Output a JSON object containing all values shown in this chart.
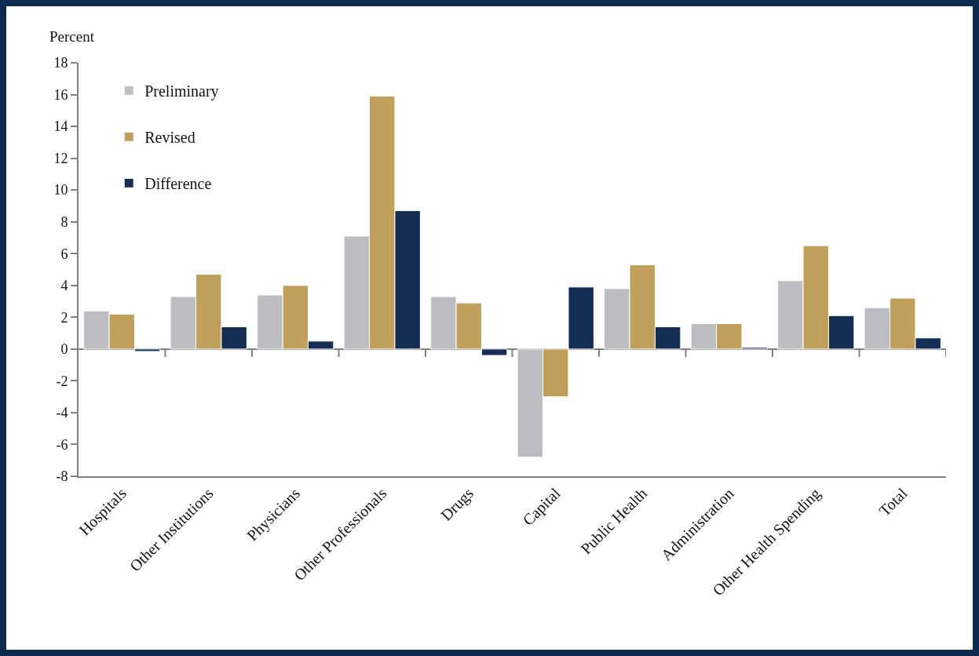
{
  "chart_data": {
    "type": "bar",
    "ylabel": "Percent",
    "categories": [
      "Hospitals",
      "Other Institutions",
      "Physicians",
      "Other Professionals",
      "Drugs",
      "Capital",
      "Public Health",
      "Administration",
      "Other Health Spending",
      "Total"
    ],
    "series": [
      {
        "name": "Preliminary",
        "color": "#bcbdc0",
        "values": [
          2.4,
          3.3,
          3.4,
          7.1,
          3.3,
          -6.8,
          3.8,
          1.6,
          4.3,
          2.6
        ]
      },
      {
        "name": "Revised",
        "color": "#c0a05a",
        "values": [
          2.2,
          4.7,
          4.0,
          15.9,
          2.9,
          -3.0,
          5.3,
          1.6,
          6.5,
          3.2
        ]
      },
      {
        "name": "Difference",
        "color": "#132d53",
        "values": [
          -0.15,
          1.4,
          0.5,
          8.7,
          -0.4,
          3.9,
          1.4,
          0.1,
          2.1,
          0.7
        ]
      }
    ],
    "ylim": [
      -8,
      18
    ],
    "yticks": [
      -8,
      -6,
      -4,
      -2,
      0,
      2,
      4,
      6,
      8,
      10,
      12,
      14,
      16,
      18
    ],
    "legend": "top left"
  }
}
